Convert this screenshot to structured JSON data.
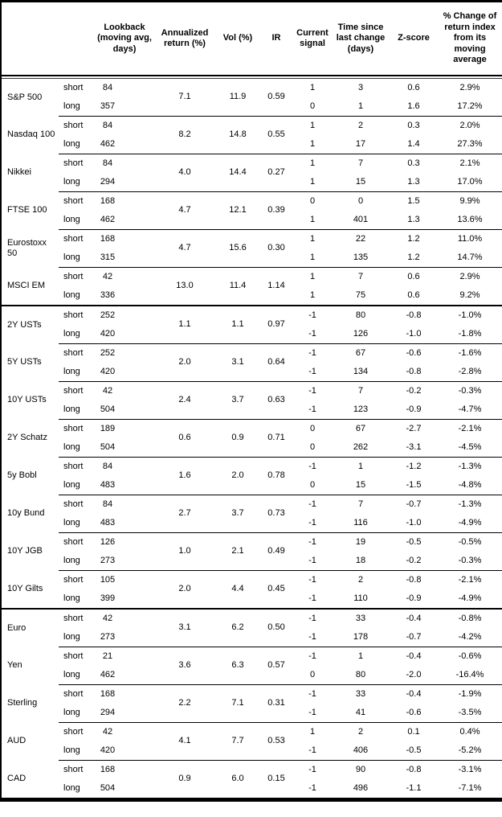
{
  "colors": {
    "text": "#000000",
    "background": "#ffffff",
    "rule": "#000000"
  },
  "table": {
    "columns": [
      {
        "key": "instrument",
        "label": ""
      },
      {
        "key": "horizon",
        "label": ""
      },
      {
        "key": "lookback",
        "label": "Lookback (moving avg, days)"
      },
      {
        "key": "annualized",
        "label": "Annualized return (%)"
      },
      {
        "key": "vol",
        "label": "Vol (%)"
      },
      {
        "key": "ir",
        "label": "IR"
      },
      {
        "key": "signal",
        "label": "Current signal"
      },
      {
        "key": "time_since",
        "label": "Time since last change (days)"
      },
      {
        "key": "zscore",
        "label": "Z-score"
      },
      {
        "key": "pct_change",
        "label": "% Change of return index from its moving average"
      }
    ],
    "sections": [
      {
        "id": "equities",
        "groups": [
          {
            "instrument": "S&P 500",
            "annualized": "7.1",
            "vol": "11.9",
            "ir": "0.59",
            "rows": [
              {
                "horizon": "short",
                "lookback": "84",
                "signal": "1",
                "time_since": "3",
                "zscore": "0.6",
                "pct_change": "2.9%"
              },
              {
                "horizon": "long",
                "lookback": "357",
                "signal": "0",
                "time_since": "1",
                "zscore": "1.6",
                "pct_change": "17.2%"
              }
            ]
          },
          {
            "instrument": "Nasdaq 100",
            "annualized": "8.2",
            "vol": "14.8",
            "ir": "0.55",
            "rows": [
              {
                "horizon": "short",
                "lookback": "84",
                "signal": "1",
                "time_since": "2",
                "zscore": "0.3",
                "pct_change": "2.0%"
              },
              {
                "horizon": "long",
                "lookback": "462",
                "signal": "1",
                "time_since": "17",
                "zscore": "1.4",
                "pct_change": "27.3%"
              }
            ]
          },
          {
            "instrument": "Nikkei",
            "annualized": "4.0",
            "vol": "14.4",
            "ir": "0.27",
            "rows": [
              {
                "horizon": "short",
                "lookback": "84",
                "signal": "1",
                "time_since": "7",
                "zscore": "0.3",
                "pct_change": "2.1%"
              },
              {
                "horizon": "long",
                "lookback": "294",
                "signal": "1",
                "time_since": "15",
                "zscore": "1.3",
                "pct_change": "17.0%"
              }
            ]
          },
          {
            "instrument": "FTSE 100",
            "annualized": "4.7",
            "vol": "12.1",
            "ir": "0.39",
            "rows": [
              {
                "horizon": "short",
                "lookback": "168",
                "signal": "0",
                "time_since": "0",
                "zscore": "1.5",
                "pct_change": "9.9%"
              },
              {
                "horizon": "long",
                "lookback": "462",
                "signal": "1",
                "time_since": "401",
                "zscore": "1.3",
                "pct_change": "13.6%"
              }
            ]
          },
          {
            "instrument": "Eurostoxx 50",
            "annualized": "4.7",
            "vol": "15.6",
            "ir": "0.30",
            "rows": [
              {
                "horizon": "short",
                "lookback": "168",
                "signal": "1",
                "time_since": "22",
                "zscore": "1.2",
                "pct_change": "11.0%"
              },
              {
                "horizon": "long",
                "lookback": "315",
                "signal": "1",
                "time_since": "135",
                "zscore": "1.2",
                "pct_change": "14.7%"
              }
            ]
          },
          {
            "instrument": "MSCI EM",
            "annualized": "13.0",
            "vol": "11.4",
            "ir": "1.14",
            "rows": [
              {
                "horizon": "short",
                "lookback": "42",
                "signal": "1",
                "time_since": "7",
                "zscore": "0.6",
                "pct_change": "2.9%"
              },
              {
                "horizon": "long",
                "lookback": "336",
                "signal": "1",
                "time_since": "75",
                "zscore": "0.6",
                "pct_change": "9.2%"
              }
            ]
          }
        ]
      },
      {
        "id": "rates",
        "groups": [
          {
            "instrument": "2Y USTs",
            "annualized": "1.1",
            "vol": "1.1",
            "ir": "0.97",
            "rows": [
              {
                "horizon": "short",
                "lookback": "252",
                "signal": "-1",
                "time_since": "80",
                "zscore": "-0.8",
                "pct_change": "-1.0%"
              },
              {
                "horizon": "long",
                "lookback": "420",
                "signal": "-1",
                "time_since": "126",
                "zscore": "-1.0",
                "pct_change": "-1.8%"
              }
            ]
          },
          {
            "instrument": "5Y USTs",
            "annualized": "2.0",
            "vol": "3.1",
            "ir": "0.64",
            "rows": [
              {
                "horizon": "short",
                "lookback": "252",
                "signal": "-1",
                "time_since": "67",
                "zscore": "-0.6",
                "pct_change": "-1.6%"
              },
              {
                "horizon": "long",
                "lookback": "420",
                "signal": "-1",
                "time_since": "134",
                "zscore": "-0.8",
                "pct_change": "-2.8%"
              }
            ]
          },
          {
            "instrument": "10Y USTs",
            "annualized": "2.4",
            "vol": "3.7",
            "ir": "0.63",
            "rows": [
              {
                "horizon": "short",
                "lookback": "42",
                "signal": "-1",
                "time_since": "7",
                "zscore": "-0.2",
                "pct_change": "-0.3%"
              },
              {
                "horizon": "long",
                "lookback": "504",
                "signal": "-1",
                "time_since": "123",
                "zscore": "-0.9",
                "pct_change": "-4.7%"
              }
            ]
          },
          {
            "instrument": "2Y Schatz",
            "annualized": "0.6",
            "vol": "0.9",
            "ir": "0.71",
            "rows": [
              {
                "horizon": "short",
                "lookback": "189",
                "signal": "0",
                "time_since": "67",
                "zscore": "-2.7",
                "pct_change": "-2.1%"
              },
              {
                "horizon": "long",
                "lookback": "504",
                "signal": "0",
                "time_since": "262",
                "zscore": "-3.1",
                "pct_change": "-4.5%"
              }
            ]
          },
          {
            "instrument": "5y Bobl",
            "annualized": "1.6",
            "vol": "2.0",
            "ir": "0.78",
            "rows": [
              {
                "horizon": "short",
                "lookback": "84",
                "signal": "-1",
                "time_since": "1",
                "zscore": "-1.2",
                "pct_change": "-1.3%"
              },
              {
                "horizon": "long",
                "lookback": "483",
                "signal": "0",
                "time_since": "15",
                "zscore": "-1.5",
                "pct_change": "-4.8%"
              }
            ]
          },
          {
            "instrument": "10y Bund",
            "annualized": "2.7",
            "vol": "3.7",
            "ir": "0.73",
            "rows": [
              {
                "horizon": "short",
                "lookback": "84",
                "signal": "-1",
                "time_since": "7",
                "zscore": "-0.7",
                "pct_change": "-1.3%"
              },
              {
                "horizon": "long",
                "lookback": "483",
                "signal": "-1",
                "time_since": "116",
                "zscore": "-1.0",
                "pct_change": "-4.9%"
              }
            ]
          },
          {
            "instrument": "10Y JGB",
            "annualized": "1.0",
            "vol": "2.1",
            "ir": "0.49",
            "rows": [
              {
                "horizon": "short",
                "lookback": "126",
                "signal": "-1",
                "time_since": "19",
                "zscore": "-0.5",
                "pct_change": "-0.5%"
              },
              {
                "horizon": "long",
                "lookback": "273",
                "signal": "-1",
                "time_since": "18",
                "zscore": "-0.2",
                "pct_change": "-0.3%"
              }
            ]
          },
          {
            "instrument": "10Y Gilts",
            "annualized": "2.0",
            "vol": "4.4",
            "ir": "0.45",
            "rows": [
              {
                "horizon": "short",
                "lookback": "105",
                "signal": "-1",
                "time_since": "2",
                "zscore": "-0.8",
                "pct_change": "-2.1%"
              },
              {
                "horizon": "long",
                "lookback": "399",
                "signal": "-1",
                "time_since": "110",
                "zscore": "-0.9",
                "pct_change": "-4.9%"
              }
            ]
          }
        ]
      },
      {
        "id": "fx",
        "groups": [
          {
            "instrument": "Euro",
            "annualized": "3.1",
            "vol": "6.2",
            "ir": "0.50",
            "rows": [
              {
                "horizon": "short",
                "lookback": "42",
                "signal": "-1",
                "time_since": "33",
                "zscore": "-0.4",
                "pct_change": "-0.8%"
              },
              {
                "horizon": "long",
                "lookback": "273",
                "signal": "-1",
                "time_since": "178",
                "zscore": "-0.7",
                "pct_change": "-4.2%"
              }
            ]
          },
          {
            "instrument": "Yen",
            "annualized": "3.6",
            "vol": "6.3",
            "ir": "0.57",
            "rows": [
              {
                "horizon": "short",
                "lookback": "21",
                "signal": "-1",
                "time_since": "1",
                "zscore": "-0.4",
                "pct_change": "-0.6%"
              },
              {
                "horizon": "long",
                "lookback": "462",
                "signal": "0",
                "time_since": "80",
                "zscore": "-2.0",
                "pct_change": "-16.4%"
              }
            ]
          },
          {
            "instrument": "Sterling",
            "annualized": "2.2",
            "vol": "7.1",
            "ir": "0.31",
            "rows": [
              {
                "horizon": "short",
                "lookback": "168",
                "signal": "-1",
                "time_since": "33",
                "zscore": "-0.4",
                "pct_change": "-1.9%"
              },
              {
                "horizon": "long",
                "lookback": "294",
                "signal": "-1",
                "time_since": "41",
                "zscore": "-0.6",
                "pct_change": "-3.5%"
              }
            ]
          },
          {
            "instrument": "AUD",
            "annualized": "4.1",
            "vol": "7.7",
            "ir": "0.53",
            "rows": [
              {
                "horizon": "short",
                "lookback": "42",
                "signal": "1",
                "time_since": "2",
                "zscore": "0.1",
                "pct_change": "0.4%"
              },
              {
                "horizon": "long",
                "lookback": "420",
                "signal": "-1",
                "time_since": "406",
                "zscore": "-0.5",
                "pct_change": "-5.2%"
              }
            ]
          },
          {
            "instrument": "CAD",
            "annualized": "0.9",
            "vol": "6.0",
            "ir": "0.15",
            "rows": [
              {
                "horizon": "short",
                "lookback": "168",
                "signal": "-1",
                "time_since": "90",
                "zscore": "-0.8",
                "pct_change": "-3.1%"
              },
              {
                "horizon": "long",
                "lookback": "504",
                "signal": "-1",
                "time_since": "496",
                "zscore": "-1.1",
                "pct_change": "-7.1%"
              }
            ]
          }
        ]
      }
    ]
  }
}
